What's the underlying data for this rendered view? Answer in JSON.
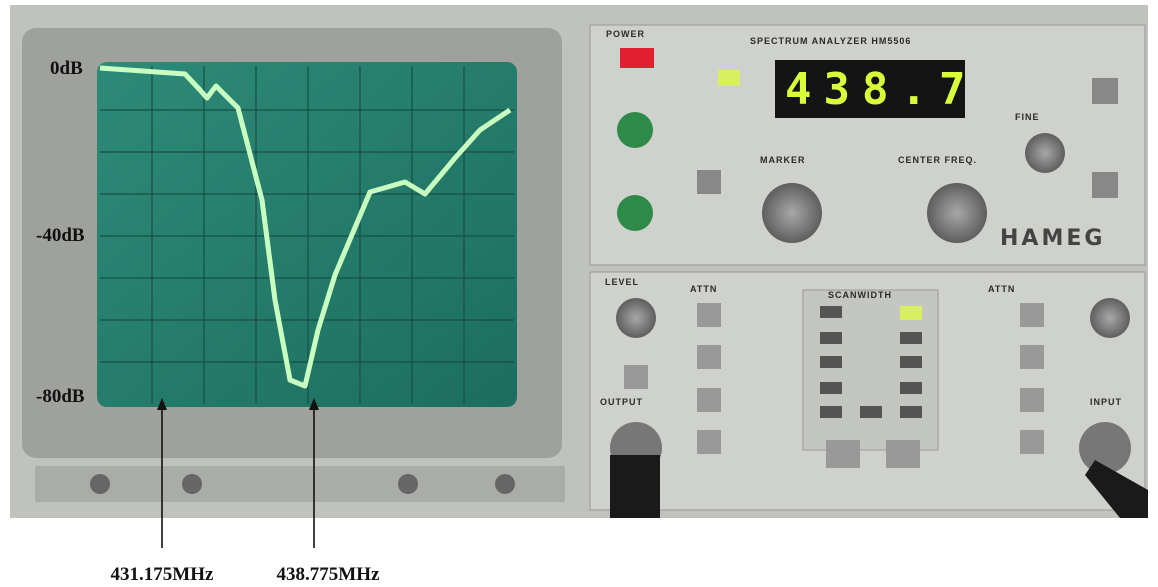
{
  "scale_labels": [
    "0dB",
    "-40dB",
    "-80dB"
  ],
  "markers": [
    "431.175MHz",
    "438.775MHz"
  ],
  "panel": {
    "title": "SPECTRUM ANALYZER HM5506",
    "display": "438.7",
    "power": "POWER",
    "marker": "MARKER",
    "center_freq": "CENTER FREQ.",
    "fine": "FINE",
    "brand": "HAMEG",
    "level": "LEVEL",
    "attn_left": "ATTN",
    "scanwidth": "SCANWIDTH",
    "attn_right": "ATTN",
    "output": "OUTPUT",
    "input": "INPUT"
  }
}
